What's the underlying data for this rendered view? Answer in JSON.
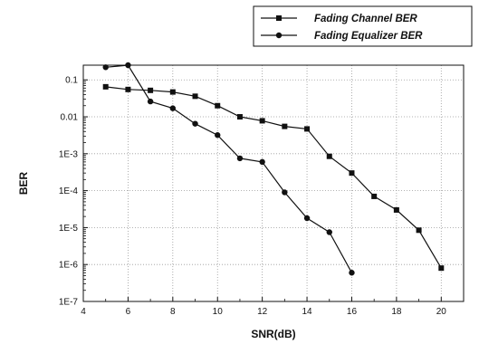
{
  "chart_data": {
    "type": "line",
    "xlabel": "SNR(dB)",
    "ylabel": "BER",
    "xlim": [
      4,
      21
    ],
    "ylim": [
      1e-07,
      0.3
    ],
    "y_scale": "log",
    "x_ticks": [
      4,
      6,
      8,
      10,
      12,
      14,
      16,
      18,
      20
    ],
    "y_ticks": [
      {
        "value": 0.1,
        "label": "0.1"
      },
      {
        "value": 0.01,
        "label": "0.01"
      },
      {
        "value": 0.001,
        "label": "1E-3"
      },
      {
        "value": 0.0001,
        "label": "1E-4"
      },
      {
        "value": 1e-05,
        "label": "1E-5"
      },
      {
        "value": 1e-06,
        "label": "1E-6"
      },
      {
        "value": 1e-07,
        "label": "1E-7"
      }
    ],
    "grid": true,
    "legend_position": "top-right",
    "series": [
      {
        "name": "Fading Channel BER",
        "marker": "square",
        "color": "#111111",
        "x": [
          5,
          6,
          7,
          8,
          9,
          10,
          11,
          12,
          13,
          14,
          15,
          16,
          17,
          18,
          19,
          20
        ],
        "y": [
          0.065,
          0.055,
          0.052,
          0.047,
          0.036,
          0.02,
          0.01,
          0.0078,
          0.0055,
          0.0047,
          0.00085,
          0.0003,
          7e-05,
          3e-05,
          8.5e-06,
          8e-07
        ]
      },
      {
        "name": "Fading Equalizer BER",
        "marker": "circle",
        "color": "#111111",
        "x": [
          5,
          6,
          7,
          8,
          9,
          10,
          11,
          12,
          13,
          14,
          15,
          16
        ],
        "y": [
          0.22,
          0.25,
          0.026,
          0.017,
          0.0065,
          0.0032,
          0.00075,
          0.0006,
          9e-05,
          1.8e-05,
          7.5e-06,
          6e-07
        ]
      }
    ]
  }
}
